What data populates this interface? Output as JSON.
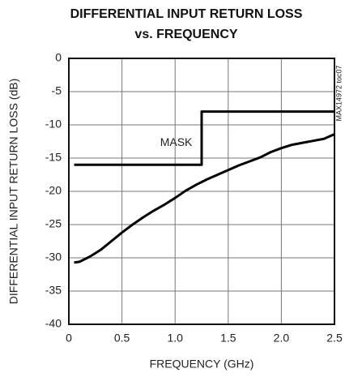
{
  "chart_data": {
    "type": "line",
    "title": [
      "DIFFERENTIAL INPUT RETURN LOSS",
      "vs. FREQUENCY"
    ],
    "xlabel": "FREQUENCY (GHz)",
    "ylabel": "DIFFERENTIAL INPUT RETURN LOSS (dB)",
    "annotation": "MAX14972 toc07",
    "xlim": [
      0,
      2.5
    ],
    "xticks": [
      0,
      0.5,
      {
        "value": 1,
        "label": "1.0"
      },
      1.5,
      {
        "value": 2,
        "label": "2.0"
      },
      2.5
    ],
    "ylim": [
      -40,
      0
    ],
    "yticks": [
      0,
      -5,
      -10,
      -15,
      -20,
      -25,
      -30,
      -35,
      -40
    ],
    "grid": true,
    "series": [
      {
        "name": "MASK",
        "color": "#000000",
        "x": [
          0.05,
          1.25,
          1.25,
          2.5
        ],
        "values": [
          -16,
          -16,
          -8,
          -8
        ]
      },
      {
        "color": "#000000",
        "x": [
          0.05,
          0.1,
          0.2,
          0.3,
          0.4,
          0.5,
          0.6,
          0.7,
          0.8,
          0.9,
          1.0,
          1.1,
          1.2,
          1.3,
          1.4,
          1.5,
          1.6,
          1.7,
          1.8,
          1.9,
          2.0,
          2.1,
          2.2,
          2.3,
          2.4,
          2.5
        ],
        "values": [
          -30.7,
          -30.6,
          -29.8,
          -28.8,
          -27.5,
          -26.2,
          -25.0,
          -23.9,
          -22.9,
          -22.0,
          -21.0,
          -19.9,
          -19.0,
          -18.2,
          -17.5,
          -16.8,
          -16.1,
          -15.5,
          -14.9,
          -14.1,
          -13.5,
          -13.0,
          -12.7,
          -12.4,
          -12.1,
          -11.4
        ]
      }
    ]
  }
}
